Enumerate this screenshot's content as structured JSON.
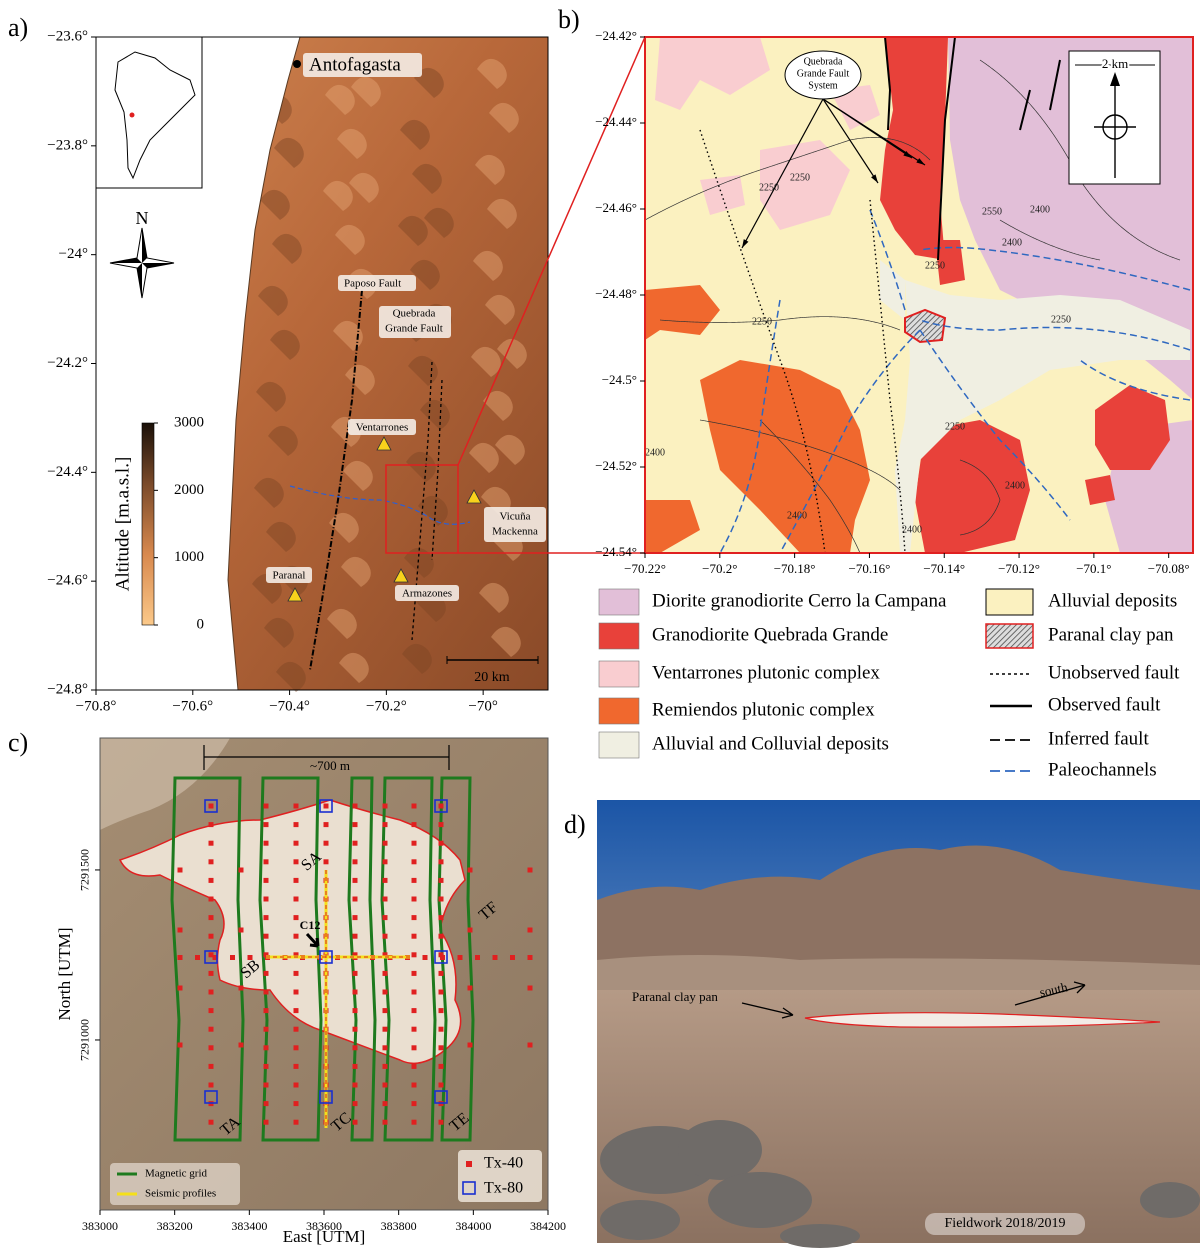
{
  "panel_a": {
    "label": "a)",
    "ylim": [
      -24.8,
      -23.6
    ],
    "xlim": [
      -70.8,
      -69.866
    ],
    "yticks": [
      {
        "value": -23.6,
        "label": "−23.6°"
      },
      {
        "value": -23.8,
        "label": "−23.8°"
      },
      {
        "value": -24,
        "label": "−24°"
      },
      {
        "value": -24.2,
        "label": "−24.2°"
      },
      {
        "value": -24.4,
        "label": "−24.4°"
      },
      {
        "value": -24.6,
        "label": "−24.6°"
      },
      {
        "value": -24.8,
        "label": "−24.8°"
      }
    ],
    "xticks": [
      {
        "value": -70.8,
        "label": "−70.8°"
      },
      {
        "value": -70.6,
        "label": "−70.6°"
      },
      {
        "value": -70.4,
        "label": "−70.4°"
      },
      {
        "value": -70.2,
        "label": "−70.2°"
      },
      {
        "value": -70,
        "label": "−70°"
      }
    ],
    "places": [
      "Antofagasta",
      "Paposo Fault",
      "Ventarrones",
      "Paranal",
      "Armazones"
    ],
    "quebrada_grande_fault": [
      "Quebrada",
      "Grande Fault"
    ],
    "vicuna_mackenna": [
      "Vicuña",
      "Mackenna"
    ],
    "north": "N",
    "scale_bar": "20 km",
    "colorbar": {
      "label": "Altitude [m.a.s.l.]",
      "range": [
        0,
        3000
      ],
      "ticks": [
        0,
        1000,
        2000,
        3000
      ]
    }
  },
  "panel_b": {
    "label": "b)",
    "ylim": [
      -24.54,
      -24.42
    ],
    "xlim": [
      -70.22,
      -70.0735
    ],
    "yticks": [
      {
        "value": -24.42,
        "label": "−24.42°"
      },
      {
        "value": -24.44,
        "label": "−24.44°"
      },
      {
        "value": -24.46,
        "label": "−24.46°"
      },
      {
        "value": -24.48,
        "label": "−24.48°"
      },
      {
        "value": -24.5,
        "label": "−24.5°"
      },
      {
        "value": -24.52,
        "label": "−24.52°"
      },
      {
        "value": -24.54,
        "label": "−24.54°"
      }
    ],
    "xticks": [
      {
        "value": -70.22,
        "label": "−70.22°"
      },
      {
        "value": -70.2,
        "label": "−70.2°"
      },
      {
        "value": -70.18,
        "label": "−70.18°"
      },
      {
        "value": -70.16,
        "label": "−70.16°"
      },
      {
        "value": -70.14,
        "label": "−70.14°"
      },
      {
        "value": -70.12,
        "label": "−70.12°"
      },
      {
        "value": -70.1,
        "label": "−70.1°"
      },
      {
        "value": -70.08,
        "label": "−70.08°"
      }
    ],
    "fault_system": [
      "Quebrada",
      "Grande Fault",
      "System"
    ],
    "scale_bar": "2 km",
    "contour_labels": [
      "2250",
      "2250",
      "2400",
      "2550",
      "2400",
      "2250",
      "2250",
      "2250",
      "2400",
      "2400",
      "2400",
      "2250",
      "2400"
    ],
    "legend": [
      "Diorite granodiorite Cerro la Campana",
      "Granodiorite Quebrada Grande",
      "Ventarrones plutonic complex",
      "Remiendos plutonic complex",
      "Alluvial and Colluvial deposits",
      "Alluvial deposits",
      "Paranal clay pan",
      "Unobserved fault",
      "Observed fault",
      "Inferred fault",
      "Paleochannels"
    ]
  },
  "panel_c": {
    "label": "c)",
    "xlim": [
      383000,
      384200
    ],
    "ylim": [
      7290500,
      7291888
    ],
    "xticks": [
      383000,
      383200,
      383400,
      383600,
      383800,
      384000,
      384200
    ],
    "yticks": [
      7291000,
      7291500
    ],
    "xlabel": "East [UTM]",
    "ylabel": "North [UTM]",
    "span": "~700 m",
    "profiles": [
      "SA",
      "SB",
      "TA",
      "TC",
      "TE",
      "TF",
      "C12"
    ],
    "legend": [
      "Magnetic grid",
      "Seismic profiles",
      "Tx-40",
      "Tx-80"
    ]
  },
  "panel_d": {
    "label": "d)",
    "annotations": [
      "Paranal clay pan",
      "south"
    ],
    "caption": "Fieldwork 2018/2019"
  }
}
